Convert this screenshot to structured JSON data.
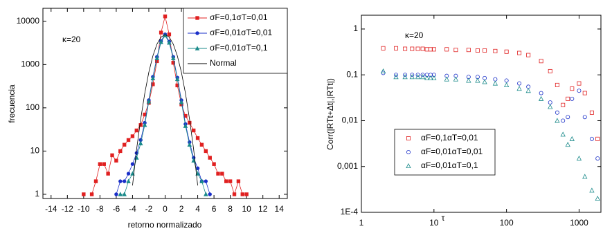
{
  "chart_data": [
    {
      "type": "line",
      "x_label": "retorno normalizado",
      "y_label": "frecuencia",
      "annotations": [
        {
          "text": "κ=20"
        }
      ],
      "log_y": true,
      "log_x": false,
      "legend": "upper right",
      "xlim": [
        -15,
        15
      ],
      "xticks": [
        -14,
        -12,
        -10,
        -8,
        -6,
        -4,
        -2,
        0,
        2,
        4,
        6,
        8,
        10,
        12,
        14
      ],
      "ylim": [
        0.8,
        20000
      ],
      "yticks": [
        1,
        10,
        100,
        1000,
        10000
      ],
      "x": [
        -10,
        -9.5,
        -9,
        -8.5,
        -8,
        -7.5,
        -7,
        -6.5,
        -6,
        -5.5,
        -5,
        -4.5,
        -4,
        -3.5,
        -3,
        -2.5,
        -2,
        -1.5,
        -1,
        -0.5,
        0,
        0.5,
        1,
        1.5,
        2,
        2.5,
        3,
        3.5,
        4,
        4.5,
        5,
        5.5,
        6,
        6.5,
        7,
        7.5,
        8,
        8.5,
        9,
        9.5,
        10
      ],
      "series": [
        {
          "name": "σF=0,1σT=0,01",
          "color": "#e02020",
          "marker": "square",
          "values": [
            1,
            null,
            1,
            2,
            5,
            5,
            3,
            8,
            6,
            10,
            14,
            18,
            22,
            30,
            40,
            70,
            130,
            350,
            1200,
            5500,
            13000,
            5000,
            1100,
            330,
            120,
            65,
            45,
            30,
            20,
            14,
            10,
            7,
            5,
            3,
            3,
            2,
            2,
            1,
            2,
            1,
            1
          ]
        },
        {
          "name": "σF=0,01σT=0,01",
          "color": "#1a2fc8",
          "marker": "circle",
          "values": [
            null,
            null,
            null,
            null,
            null,
            null,
            null,
            null,
            1,
            2,
            2,
            3,
            5,
            9,
            18,
            45,
            150,
            520,
            1500,
            3500,
            5000,
            3400,
            1500,
            500,
            150,
            42,
            16,
            7,
            4,
            2,
            2,
            1,
            null,
            null,
            null,
            null,
            null,
            null,
            null,
            null,
            null
          ]
        },
        {
          "name": "σF=0,01σT=0,1",
          "color": "#1a8a8a",
          "marker": "triangle",
          "values": [
            null,
            null,
            null,
            null,
            null,
            null,
            null,
            null,
            null,
            1,
            1,
            2,
            3,
            7,
            15,
            40,
            140,
            480,
            1400,
            3300,
            4700,
            3200,
            1400,
            460,
            135,
            38,
            14,
            6,
            3,
            2,
            1,
            null,
            null,
            null,
            null,
            null,
            null,
            null,
            null,
            null,
            null
          ]
        },
        {
          "name": "Normal",
          "color": "#000000",
          "values": [
            null,
            null,
            null,
            null,
            null,
            null,
            null,
            null,
            null,
            null,
            null,
            null,
            1.6,
            11,
            54,
            215,
            663,
            1591,
            2972,
            4324,
            4900,
            4324,
            2972,
            1591,
            663,
            215,
            54,
            11,
            1.6,
            null,
            null,
            null,
            null,
            null,
            null,
            null,
            null,
            null,
            null,
            null,
            null
          ]
        }
      ]
    },
    {
      "type": "scatter",
      "x_label": "τ",
      "y_label": "Corr(|RTt+Δt|,|RTt|)",
      "annotations": [
        {
          "text": "κ=20"
        }
      ],
      "log_y": true,
      "log_x": true,
      "legend": "lower left",
      "hollow_markers": true,
      "xlim": [
        1,
        2000
      ],
      "xticks": [
        1,
        10,
        100,
        1000
      ],
      "ylim": [
        0.0001,
        2
      ],
      "yticks": [
        {
          "value": 0.0001,
          "label": "1E-4"
        },
        {
          "value": 0.001,
          "label": "0,001"
        },
        {
          "value": 0.01,
          "label": "0,01"
        },
        {
          "value": 0.1,
          "label": "0,1"
        },
        1
      ],
      "x": [
        2,
        3,
        4,
        5,
        6,
        7,
        8,
        9,
        10,
        15,
        20,
        30,
        40,
        50,
        70,
        100,
        150,
        200,
        300,
        400,
        500,
        600,
        700,
        800,
        1000,
        1200,
        1500,
        1800
      ],
      "series": [
        {
          "name": "αF=0,1αT=0,01",
          "color": "#e02020",
          "marker": "square",
          "values": [
            0.38,
            0.38,
            0.37,
            0.37,
            0.37,
            0.37,
            0.36,
            0.36,
            0.36,
            0.36,
            0.35,
            0.35,
            0.34,
            0.34,
            0.33,
            0.32,
            0.3,
            0.27,
            0.2,
            0.12,
            0.06,
            0.022,
            0.03,
            0.05,
            0.065,
            0.04,
            0.015,
            0.004
          ]
        },
        {
          "name": "αF=0,01αT=0,01",
          "color": "#1a2fc8",
          "marker": "circle",
          "values": [
            0.11,
            0.1,
            0.1,
            0.1,
            0.1,
            0.1,
            0.1,
            0.1,
            0.1,
            0.095,
            0.095,
            0.09,
            0.09,
            0.085,
            0.08,
            0.075,
            0.065,
            0.055,
            0.04,
            0.025,
            0.015,
            0.01,
            0.012,
            0.03,
            0.045,
            0.012,
            0.004,
            0.0015
          ]
        },
        {
          "name": "αF=0,01αT=0,1",
          "color": "#1a8a8a",
          "marker": "triangle",
          "values": [
            0.12,
            0.09,
            0.09,
            0.09,
            0.09,
            0.09,
            0.085,
            0.085,
            0.085,
            0.08,
            0.08,
            0.075,
            0.075,
            0.07,
            0.065,
            0.06,
            0.05,
            0.045,
            0.03,
            0.02,
            0.01,
            0.005,
            0.003,
            0.004,
            0.0015,
            0.0006,
            0.0003,
            0.0002
          ]
        }
      ]
    }
  ]
}
